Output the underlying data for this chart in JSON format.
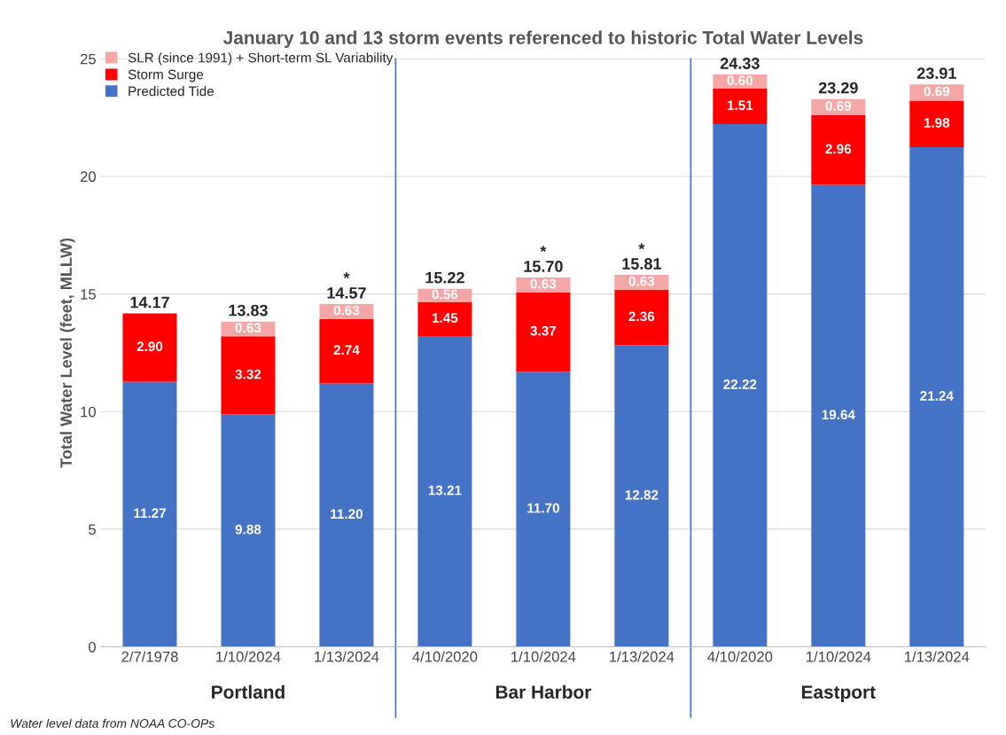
{
  "chart_data": {
    "type": "bar",
    "title": "January 10 and 13 storm events referenced to historic Total Water Levels",
    "ylabel": "Total Water Level (feet, MLLW)",
    "categories": [
      "2/7/1978",
      "1/10/2024",
      "1/13/2024",
      "4/10/2020",
      "1/10/2024",
      "1/13/2024",
      "4/10/2020",
      "1/10/2024",
      "1/13/2024"
    ],
    "stacked": true,
    "series": [
      {
        "name": "Predicted Tide",
        "color": "#4472c4",
        "values": [
          11.27,
          9.88,
          11.2,
          13.21,
          11.7,
          12.82,
          22.22,
          19.64,
          21.24
        ],
        "value_labels": [
          "11.27",
          "9.88",
          "11.20",
          "13.21",
          "11.70",
          "12.82",
          "22.22",
          "19.64",
          "21.24"
        ]
      },
      {
        "name": "Storm Surge",
        "color": "#ff0000",
        "values": [
          2.9,
          3.32,
          2.74,
          1.45,
          3.37,
          2.36,
          1.51,
          2.96,
          1.98
        ],
        "value_labels": [
          "2.90",
          "3.32",
          "2.74",
          "1.45",
          "3.37",
          "2.36",
          "1.51",
          "2.96",
          "1.98"
        ]
      },
      {
        "name": "SLR (since 1991) + Short-term SL Variability",
        "color": "#f4a6a6",
        "values": [
          null,
          0.63,
          0.63,
          0.56,
          0.63,
          0.63,
          0.6,
          0.69,
          0.69
        ],
        "value_labels": [
          null,
          "0.63",
          "0.63",
          "0.56",
          "0.63",
          "0.63",
          "0.60",
          "0.69",
          "0.69"
        ]
      }
    ],
    "totals": [
      "14.17",
      "13.83",
      "*\n14.57",
      "15.22",
      "*\n15.70",
      "*\n15.81",
      "24.33",
      "23.29",
      "23.91"
    ],
    "ylim": [
      0,
      25
    ],
    "yticks": [
      0,
      5,
      10,
      15,
      20,
      25
    ],
    "grid": "y",
    "legend": "top left",
    "annotations": [
      "Portland",
      "Bar Harbor",
      "Eastport",
      "Water level data from NOAA CO-OPs"
    ]
  }
}
